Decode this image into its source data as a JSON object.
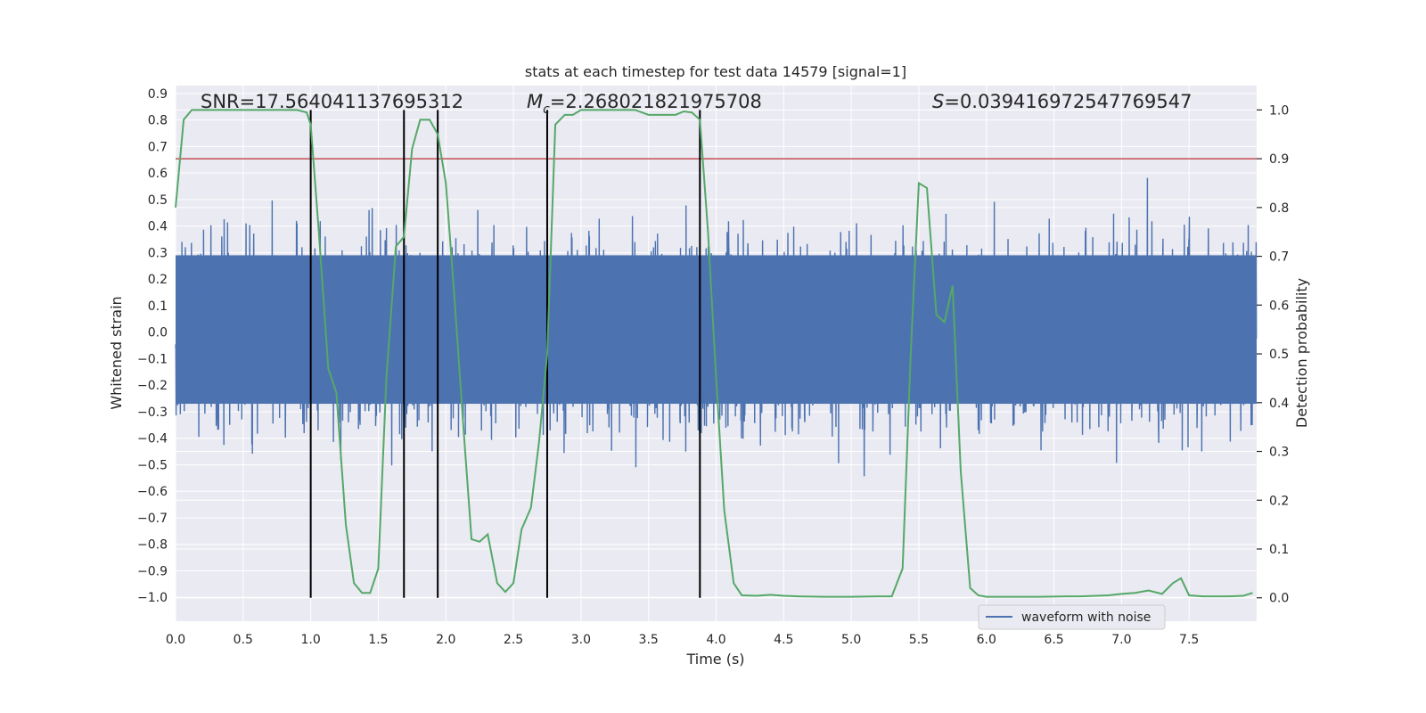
{
  "chart_data": {
    "type": "line",
    "title": "stats at each timestep for test data 14579 [signal=1]",
    "xlabel": "Time (s)",
    "ylabel_left": "Whitened strain",
    "ylabel_right": "Detection probability",
    "xlim": [
      0.0,
      8.0
    ],
    "ylim_left": [
      -1.09,
      0.93
    ],
    "ylim_right": [
      -0.048,
      1.05
    ],
    "x_ticks": [
      "0.0",
      "0.5",
      "1.0",
      "1.5",
      "2.0",
      "2.5",
      "3.0",
      "3.5",
      "4.0",
      "4.5",
      "5.0",
      "5.5",
      "6.0",
      "6.5",
      "7.0",
      "7.5"
    ],
    "x_tick_values": [
      0.0,
      0.5,
      1.0,
      1.5,
      2.0,
      2.5,
      3.0,
      3.5,
      4.0,
      4.5,
      5.0,
      5.5,
      6.0,
      6.5,
      7.0,
      7.5
    ],
    "y_left_ticks": [
      "0.9",
      "0.8",
      "0.7",
      "0.6",
      "0.5",
      "0.4",
      "0.3",
      "0.2",
      "0.1",
      "0.0",
      "−0.1",
      "−0.2",
      "−0.3",
      "−0.4",
      "−0.5",
      "−0.6",
      "−0.7",
      "−0.8",
      "−0.9",
      "−1.0"
    ],
    "y_left_tick_values": [
      0.9,
      0.8,
      0.7,
      0.6,
      0.5,
      0.4,
      0.3,
      0.2,
      0.1,
      0.0,
      -0.1,
      -0.2,
      -0.3,
      -0.4,
      -0.5,
      -0.6,
      -0.7,
      -0.8,
      -0.9,
      -1.0
    ],
    "y_right_ticks": [
      "1.0",
      "0.9",
      "0.8",
      "0.7",
      "0.6",
      "0.5",
      "0.4",
      "0.3",
      "0.2",
      "0.1",
      "0.0"
    ],
    "y_right_tick_values": [
      1.0,
      0.9,
      0.8,
      0.7,
      0.6,
      0.5,
      0.4,
      0.3,
      0.2,
      0.1,
      0.0
    ],
    "annotations": {
      "snr": "SNR=17.564041137695312",
      "mc_symbol": "M",
      "mc_sub": "c",
      "mc_value": "=2.268021821975708",
      "s_symbol": "S",
      "s_value": "=0.039416972547769547"
    },
    "threshold": {
      "value": 0.9,
      "color": "#c44e52"
    },
    "vertical_lines": [
      1.0,
      1.69,
      1.94,
      2.75,
      3.88
    ],
    "vertical_line_range": [
      0.0,
      1.0
    ],
    "waveform": {
      "name": "waveform with noise",
      "color": "#4c72b0",
      "dense_band": [
        -0.27,
        0.29
      ],
      "typical_peak": 0.48,
      "samples": 4096,
      "duration_s": 8.0
    },
    "probability": {
      "color": "#55a868",
      "x": [
        0.0,
        0.06,
        0.12,
        0.2,
        0.3,
        0.4,
        0.5,
        0.6,
        0.7,
        0.8,
        0.9,
        0.97,
        1.0,
        1.06,
        1.13,
        1.19,
        1.26,
        1.32,
        1.38,
        1.44,
        1.5,
        1.56,
        1.63,
        1.69,
        1.75,
        1.81,
        1.88,
        1.94,
        2.0,
        2.06,
        2.13,
        2.19,
        2.25,
        2.31,
        2.38,
        2.44,
        2.5,
        2.56,
        2.63,
        2.69,
        2.75,
        2.81,
        2.88,
        2.94,
        3.0,
        3.1,
        3.2,
        3.3,
        3.4,
        3.5,
        3.6,
        3.7,
        3.76,
        3.82,
        3.88,
        3.94,
        4.0,
        4.06,
        4.13,
        4.19,
        4.3,
        4.4,
        4.5,
        4.6,
        4.8,
        5.0,
        5.2,
        5.3,
        5.38,
        5.44,
        5.5,
        5.56,
        5.63,
        5.69,
        5.75,
        5.81,
        5.88,
        5.94,
        6.0,
        6.2,
        6.4,
        6.6,
        6.7,
        6.9,
        7.0,
        7.1,
        7.2,
        7.3,
        7.38,
        7.44,
        7.5,
        7.6,
        7.8,
        7.9,
        7.97
      ],
      "y": [
        0.8,
        0.98,
        1.0,
        1.0,
        1.0,
        1.0,
        1.0,
        1.0,
        1.0,
        1.0,
        1.0,
        0.995,
        0.97,
        0.75,
        0.47,
        0.42,
        0.15,
        0.03,
        0.01,
        0.01,
        0.06,
        0.45,
        0.72,
        0.74,
        0.92,
        0.98,
        0.98,
        0.95,
        0.85,
        0.63,
        0.35,
        0.12,
        0.115,
        0.13,
        0.03,
        0.012,
        0.03,
        0.14,
        0.185,
        0.32,
        0.5,
        0.97,
        0.99,
        0.99,
        1.0,
        1.0,
        1.0,
        1.0,
        1.0,
        0.99,
        0.99,
        0.99,
        0.997,
        0.995,
        0.98,
        0.75,
        0.45,
        0.18,
        0.03,
        0.005,
        0.004,
        0.006,
        0.004,
        0.003,
        0.002,
        0.002,
        0.003,
        0.003,
        0.06,
        0.5,
        0.85,
        0.84,
        0.58,
        0.565,
        0.64,
        0.26,
        0.02,
        0.005,
        0.002,
        0.002,
        0.002,
        0.003,
        0.003,
        0.005,
        0.008,
        0.01,
        0.015,
        0.008,
        0.03,
        0.04,
        0.005,
        0.003,
        0.003,
        0.004,
        0.01
      ]
    },
    "legend": {
      "entries": [
        "waveform with noise"
      ],
      "placement": "lower-right"
    },
    "grid": true
  }
}
